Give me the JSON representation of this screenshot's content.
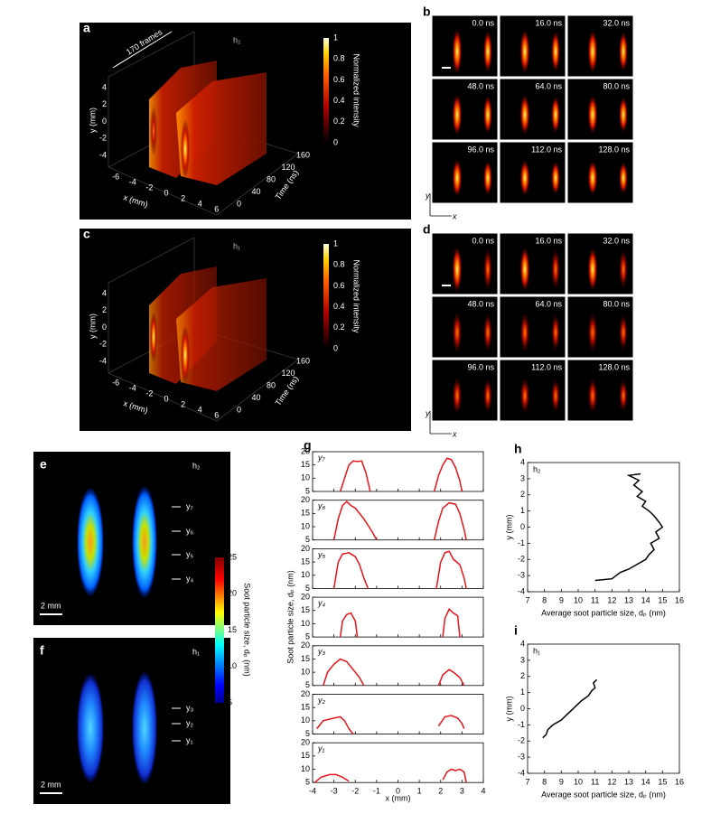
{
  "panels": {
    "a": {
      "label": "a",
      "annotation": "170 frames",
      "tag": "h₂",
      "ylabel": "y (mm)",
      "xlabel": "x (mm)",
      "tlabel": "Time (ns)",
      "yticks": [
        -4,
        -2,
        0,
        2,
        4
      ],
      "xticks": [
        -6,
        -4,
        -2,
        0,
        2,
        4,
        6
      ],
      "tticks": [
        0,
        40,
        80,
        120,
        160
      ],
      "cbar_ticks": [
        0,
        0.2,
        0.4,
        0.6,
        0.8,
        1
      ],
      "cbar_label": "Normalized intensity"
    },
    "b": {
      "label": "b",
      "times": [
        "0.0 ns",
        "16.0 ns",
        "32.0 ns",
        "48.0 ns",
        "64.0 ns",
        "80.0 ns",
        "96.0 ns",
        "112.0 ns",
        "128.0 ns"
      ],
      "axis_y": "y",
      "axis_x": "x"
    },
    "c": {
      "label": "c",
      "tag": "h₁",
      "ylabel": "y (mm)",
      "xlabel": "x (mm)",
      "tlabel": "Time (ns)",
      "yticks": [
        -4,
        -2,
        0,
        2,
        4
      ],
      "xticks": [
        -6,
        -4,
        -2,
        0,
        2,
        4,
        6
      ],
      "tticks": [
        0,
        40,
        80,
        120,
        160
      ],
      "cbar_ticks": [
        0,
        0.2,
        0.4,
        0.6,
        0.8,
        1
      ],
      "cbar_label": "Normalized intensity"
    },
    "d": {
      "label": "d",
      "times": [
        "0.0 ns",
        "16.0 ns",
        "32.0 ns",
        "48.0 ns",
        "64.0 ns",
        "80.0 ns",
        "96.0 ns",
        "112.0 ns",
        "128.0 ns"
      ],
      "axis_y": "y",
      "axis_x": "x"
    },
    "e": {
      "label": "e",
      "tag": "h₂",
      "rows": [
        "y₇",
        "y₆",
        "y₅",
        "y₄"
      ],
      "scale": "2 mm",
      "cbar_ticks": [
        5,
        10,
        15,
        20,
        25
      ],
      "cbar_label": "Soot particle size, dₚ (nm)"
    },
    "f": {
      "label": "f",
      "tag": "h₁",
      "rows": [
        "y₃",
        "y₂",
        "y₁"
      ],
      "scale": "2 mm"
    }
  },
  "chart_data": [
    {
      "type": "line",
      "label": "g",
      "ylabel": "Soot particle size, dₚ (nm)",
      "xlabel": "x (mm)",
      "color": "#e8141c",
      "xlim": [
        -4,
        4
      ],
      "xticks": [
        -4,
        -3,
        -2,
        -1,
        0,
        1,
        2,
        3,
        4
      ],
      "ylim": [
        5,
        20
      ],
      "yticks": [
        5,
        10,
        15,
        20
      ],
      "subplots": [
        {
          "name": "y₇",
          "series": [
            {
              "x": [
                -2.7,
                -2.5,
                -2.3,
                -2.1,
                -1.9,
                -1.7,
                -1.5,
                -1.3
              ],
              "values": [
                5,
                10,
                15,
                16.5,
                16.3,
                16.5,
                12,
                5
              ]
            },
            {
              "x": [
                1.7,
                1.9,
                2.1,
                2.3,
                2.5,
                2.7,
                2.9,
                3.0
              ],
              "values": [
                5,
                11,
                15,
                17.5,
                17,
                14,
                9,
                5
              ]
            }
          ]
        },
        {
          "name": "y₆",
          "series": [
            {
              "x": [
                -3.0,
                -2.8,
                -2.6,
                -2.4,
                -2.2,
                -2.0,
                -1.6,
                -1.2,
                -1.0
              ],
              "values": [
                5,
                13,
                18,
                19.5,
                18,
                17,
                13,
                8,
                5
              ]
            },
            {
              "x": [
                1.7,
                1.9,
                2.1,
                2.4,
                2.7,
                2.9,
                3.1,
                3.2
              ],
              "values": [
                5,
                12,
                17,
                19,
                18.5,
                15,
                9,
                5
              ]
            }
          ]
        },
        {
          "name": "y₅",
          "series": [
            {
              "x": [
                -3.0,
                -2.8,
                -2.6,
                -2.3,
                -2.0,
                -1.8,
                -1.6,
                -1.4
              ],
              "values": [
                5,
                15,
                18,
                18.5,
                17,
                14,
                9,
                5
              ]
            },
            {
              "x": [
                1.8,
                2.0,
                2.2,
                2.4,
                2.6,
                2.9,
                3.1,
                3.2
              ],
              "values": [
                5,
                15,
                18.5,
                19,
                16,
                14,
                9,
                5
              ]
            }
          ]
        },
        {
          "name": "y₄",
          "series": [
            {
              "x": [
                -2.7,
                -2.6,
                -2.4,
                -2.2,
                -2.0,
                -1.9
              ],
              "values": [
                5,
                11,
                13.5,
                14,
                11,
                5
              ]
            },
            {
              "x": [
                2.1,
                2.2,
                2.4,
                2.6,
                2.8,
                2.9
              ],
              "values": [
                5,
                12,
                15.5,
                14,
                13,
                5
              ]
            }
          ]
        },
        {
          "name": "y₃",
          "series": [
            {
              "x": [
                -3.5,
                -3.3,
                -3.0,
                -2.7,
                -2.4,
                -2.1,
                -1.8,
                -1.6
              ],
              "values": [
                5,
                10,
                13,
                15,
                14,
                11,
                8,
                5
              ]
            },
            {
              "x": [
                1.9,
                2.1,
                2.4,
                2.6,
                2.9,
                3.1
              ],
              "values": [
                5,
                9,
                11,
                10,
                8,
                5
              ]
            }
          ]
        },
        {
          "name": "y₂",
          "series": [
            {
              "x": [
                -3.8,
                -3.5,
                -3.0,
                -2.7,
                -2.5,
                -2.3,
                -2.1
              ],
              "values": [
                7,
                10,
                11,
                11.5,
                10,
                7,
                5
              ]
            },
            {
              "x": [
                1.9,
                2.2,
                2.5,
                2.8,
                3.0,
                3.1
              ],
              "values": [
                8,
                11.5,
                12,
                11,
                9,
                7
              ]
            }
          ]
        },
        {
          "name": "y₁",
          "series": [
            {
              "x": [
                -3.9,
                -3.6,
                -3.2,
                -2.9,
                -2.6,
                -2.3
              ],
              "values": [
                5,
                7,
                8,
                8,
                7,
                5.5
              ]
            },
            {
              "x": [
                2.1,
                2.3,
                2.5,
                2.7,
                2.9,
                3.1,
                3.2
              ],
              "values": [
                6,
                9,
                10,
                9.5,
                10,
                9,
                5
              ]
            }
          ]
        }
      ]
    },
    {
      "type": "line",
      "label": "h",
      "annotation": "h₂",
      "xlabel": "Average soot particle size, dₚ (nm)",
      "ylabel": "y (mm)",
      "color": "#000000",
      "xlim": [
        7,
        16
      ],
      "xticks": [
        7,
        8,
        9,
        10,
        11,
        12,
        13,
        14,
        15,
        16
      ],
      "ylim": [
        -4,
        4
      ],
      "yticks": [
        -4,
        -3,
        -2,
        -1,
        0,
        1,
        2,
        3,
        4
      ],
      "series": [
        {
          "x": [
            11,
            12,
            12.5,
            13,
            13.5,
            14,
            14.2,
            14.5,
            14.3,
            14.8,
            14.6,
            15,
            14.8,
            14.5,
            14.2,
            13.8,
            14,
            13.5,
            13.8,
            13.3,
            13.6,
            13,
            13.7
          ],
          "values": [
            -3.3,
            -3.2,
            -2.8,
            -2.6,
            -2.3,
            -2,
            -1.7,
            -1.4,
            -1,
            -0.7,
            -0.3,
            0,
            0.3,
            0.7,
            1,
            1.3,
            1.6,
            1.9,
            2.2,
            2.6,
            2.9,
            3.2,
            3.3
          ]
        }
      ]
    },
    {
      "type": "line",
      "label": "i",
      "annotation": "h₁",
      "xlabel": "Average soot particle size, dₚ (nm)",
      "ylabel": "y (mm)",
      "color": "#000000",
      "xlim": [
        7,
        16
      ],
      "xticks": [
        7,
        8,
        9,
        10,
        11,
        12,
        13,
        14,
        15,
        16
      ],
      "ylim": [
        -4,
        4
      ],
      "yticks": [
        -4,
        -3,
        -2,
        -1,
        0,
        1,
        2,
        3,
        4
      ],
      "series": [
        {
          "x": [
            7.9,
            8.1,
            8.2,
            8.5,
            9,
            9.3,
            9.6,
            9.9,
            10.2,
            10.6,
            10.8,
            11,
            10.9,
            11.1
          ],
          "values": [
            -1.8,
            -1.6,
            -1.3,
            -1.0,
            -0.7,
            -0.4,
            -0.1,
            0.2,
            0.5,
            0.8,
            1.1,
            1.3,
            1.6,
            1.8
          ]
        }
      ]
    }
  ]
}
